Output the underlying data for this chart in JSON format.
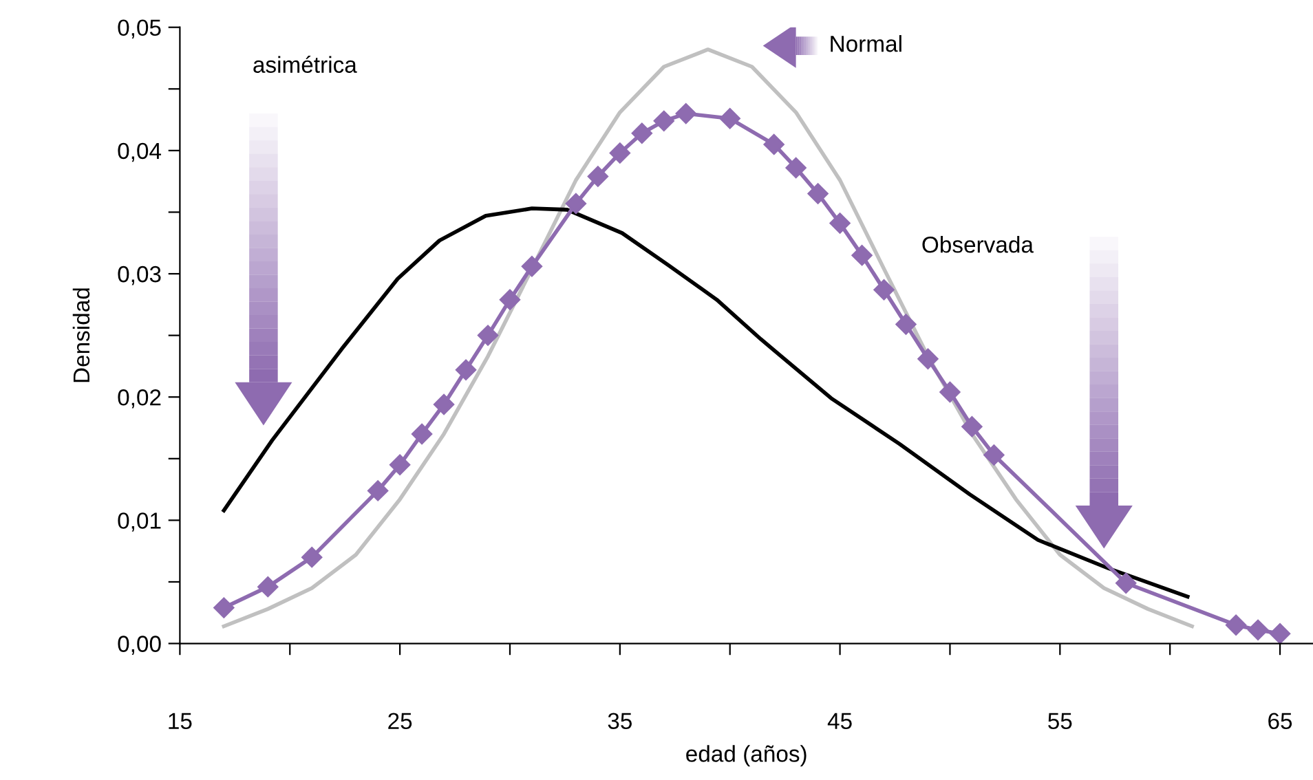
{
  "chart_data": {
    "type": "line",
    "xlabel": "edad (años)",
    "ylabel": "Densidad",
    "xlim": [
      15,
      66.5
    ],
    "ylim": [
      0,
      0.05
    ],
    "xticks": [
      15,
      {
        "value": 20,
        "label": null
      },
      25,
      {
        "value": 30,
        "label": null
      },
      35,
      {
        "value": 40,
        "label": null
      },
      45,
      {
        "value": 50,
        "label": null
      },
      55,
      {
        "value": 60,
        "label": null
      },
      65
    ],
    "yticks": [
      {
        "value": 0,
        "label": "0,00"
      },
      {
        "value": 0.005,
        "label": null
      },
      {
        "value": 0.01,
        "label": "0,01"
      },
      {
        "value": 0.015,
        "label": null
      },
      {
        "value": 0.02,
        "label": "0,02"
      },
      {
        "value": 0.025,
        "label": null
      },
      {
        "value": 0.03,
        "label": "0,03"
      },
      {
        "value": 0.035,
        "label": null
      },
      {
        "value": 0.04,
        "label": "0,04"
      },
      {
        "value": 0.045,
        "label": null
      },
      {
        "value": 0.05,
        "label": "0,05"
      }
    ],
    "grid": false,
    "line_style": "solid",
    "annotations": [
      "Normal",
      "asimétrica",
      "Observada"
    ],
    "series": [
      {
        "color": "#c0c0c0",
        "marker": "none",
        "x": [
          17,
          19,
          21,
          23,
          25,
          27,
          29,
          31,
          33,
          35,
          37,
          39,
          41,
          43,
          45,
          47,
          49,
          51,
          53,
          55,
          57,
          59,
          61
        ],
        "values": [
          0.0014,
          0.0028,
          0.0045,
          0.0072,
          0.0117,
          0.017,
          0.0233,
          0.0304,
          0.0376,
          0.0431,
          0.0468,
          0.0482,
          0.0468,
          0.0431,
          0.0376,
          0.0304,
          0.0233,
          0.017,
          0.0117,
          0.0072,
          0.0045,
          0.0028,
          0.0014
        ]
      },
      {
        "color": "#000000",
        "marker": "none",
        "x": [
          17,
          19.2,
          22.4,
          24.9,
          26.8,
          28.9,
          31,
          32.6,
          35.1,
          37.2,
          39.4,
          41.4,
          44.6,
          47.7,
          50.9,
          54,
          57.2,
          60.8
        ],
        "values": [
          0.0108,
          0.0165,
          0.024,
          0.0296,
          0.0327,
          0.0347,
          0.0353,
          0.0352,
          0.0333,
          0.0307,
          0.0279,
          0.0247,
          0.0199,
          0.0162,
          0.0121,
          0.0084,
          0.0061,
          0.0038
        ]
      },
      {
        "color": "#8e6bb0",
        "marker": "diamond",
        "x": [
          17,
          19,
          21,
          24,
          25,
          26,
          27,
          28,
          29,
          30,
          31,
          33,
          34,
          35,
          36,
          37,
          38,
          40,
          42,
          43,
          44,
          45,
          46,
          47,
          48,
          49,
          50,
          51,
          52,
          58,
          63,
          64,
          65
        ],
        "values": [
          0.0029,
          0.0046,
          0.007,
          0.0124,
          0.0145,
          0.017,
          0.0194,
          0.0222,
          0.025,
          0.0279,
          0.0306,
          0.0357,
          0.0379,
          0.0398,
          0.0414,
          0.0424,
          0.043,
          0.0426,
          0.0405,
          0.0386,
          0.0365,
          0.0341,
          0.0315,
          0.0287,
          0.0259,
          0.0231,
          0.0204,
          0.0176,
          0.0153,
          0.0049,
          0.0015,
          0.0011,
          0.0008
        ]
      }
    ]
  }
}
